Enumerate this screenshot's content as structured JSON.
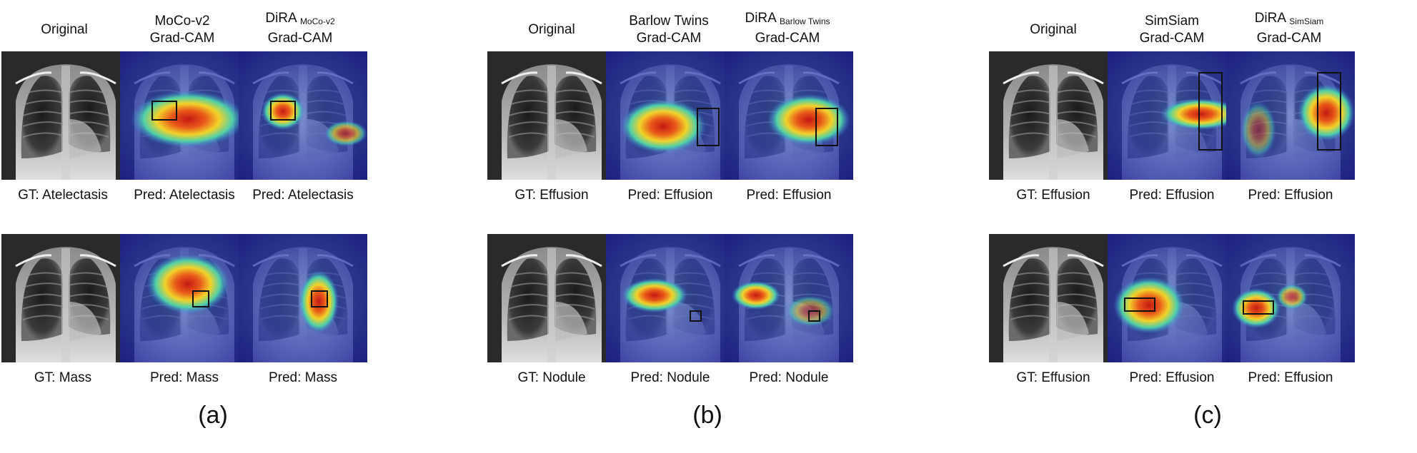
{
  "panels": [
    {
      "label": "(a)",
      "columns": [
        {
          "title": "Original"
        },
        {
          "title": "MoCo-v2",
          "subtitle": "Grad-CAM"
        },
        {
          "title": "DiRA",
          "title_sub": "MoCo-v2",
          "subtitle": "Grad-CAM"
        }
      ],
      "rows": [
        [
          "GT: Atelectasis",
          "Pred: Atelectasis",
          "Pred: Atelectasis"
        ],
        [
          "GT: Mass",
          "Pred: Mass",
          "Pred: Mass"
        ]
      ]
    },
    {
      "label": "(b)",
      "columns": [
        {
          "title": "Original"
        },
        {
          "title": "Barlow Twins",
          "subtitle": "Grad-CAM"
        },
        {
          "title": "DiRA",
          "title_sub": "Barlow Twins",
          "subtitle": "Grad-CAM"
        }
      ],
      "rows": [
        [
          "GT: Effusion",
          "Pred: Effusion",
          "Pred: Effusion"
        ],
        [
          "GT: Nodule",
          "Pred: Nodule",
          "Pred: Nodule"
        ]
      ]
    },
    {
      "label": "(c)",
      "columns": [
        {
          "title": "Original"
        },
        {
          "title": "SimSiam",
          "subtitle": "Grad-CAM"
        },
        {
          "title": "DiRA",
          "title_sub": "SimSiam",
          "subtitle": "Grad-CAM"
        }
      ],
      "rows": [
        [
          "GT: Effusion",
          "Pred: Effusion",
          "Pred: Effusion"
        ],
        [
          "GT: Effusion",
          "Pred: Effusion",
          "Pred: Effusion"
        ]
      ]
    }
  ],
  "colors": {
    "heatmap_low": "#1c1f9a",
    "heatmap_high": "#d2201c",
    "box": "#111111"
  }
}
